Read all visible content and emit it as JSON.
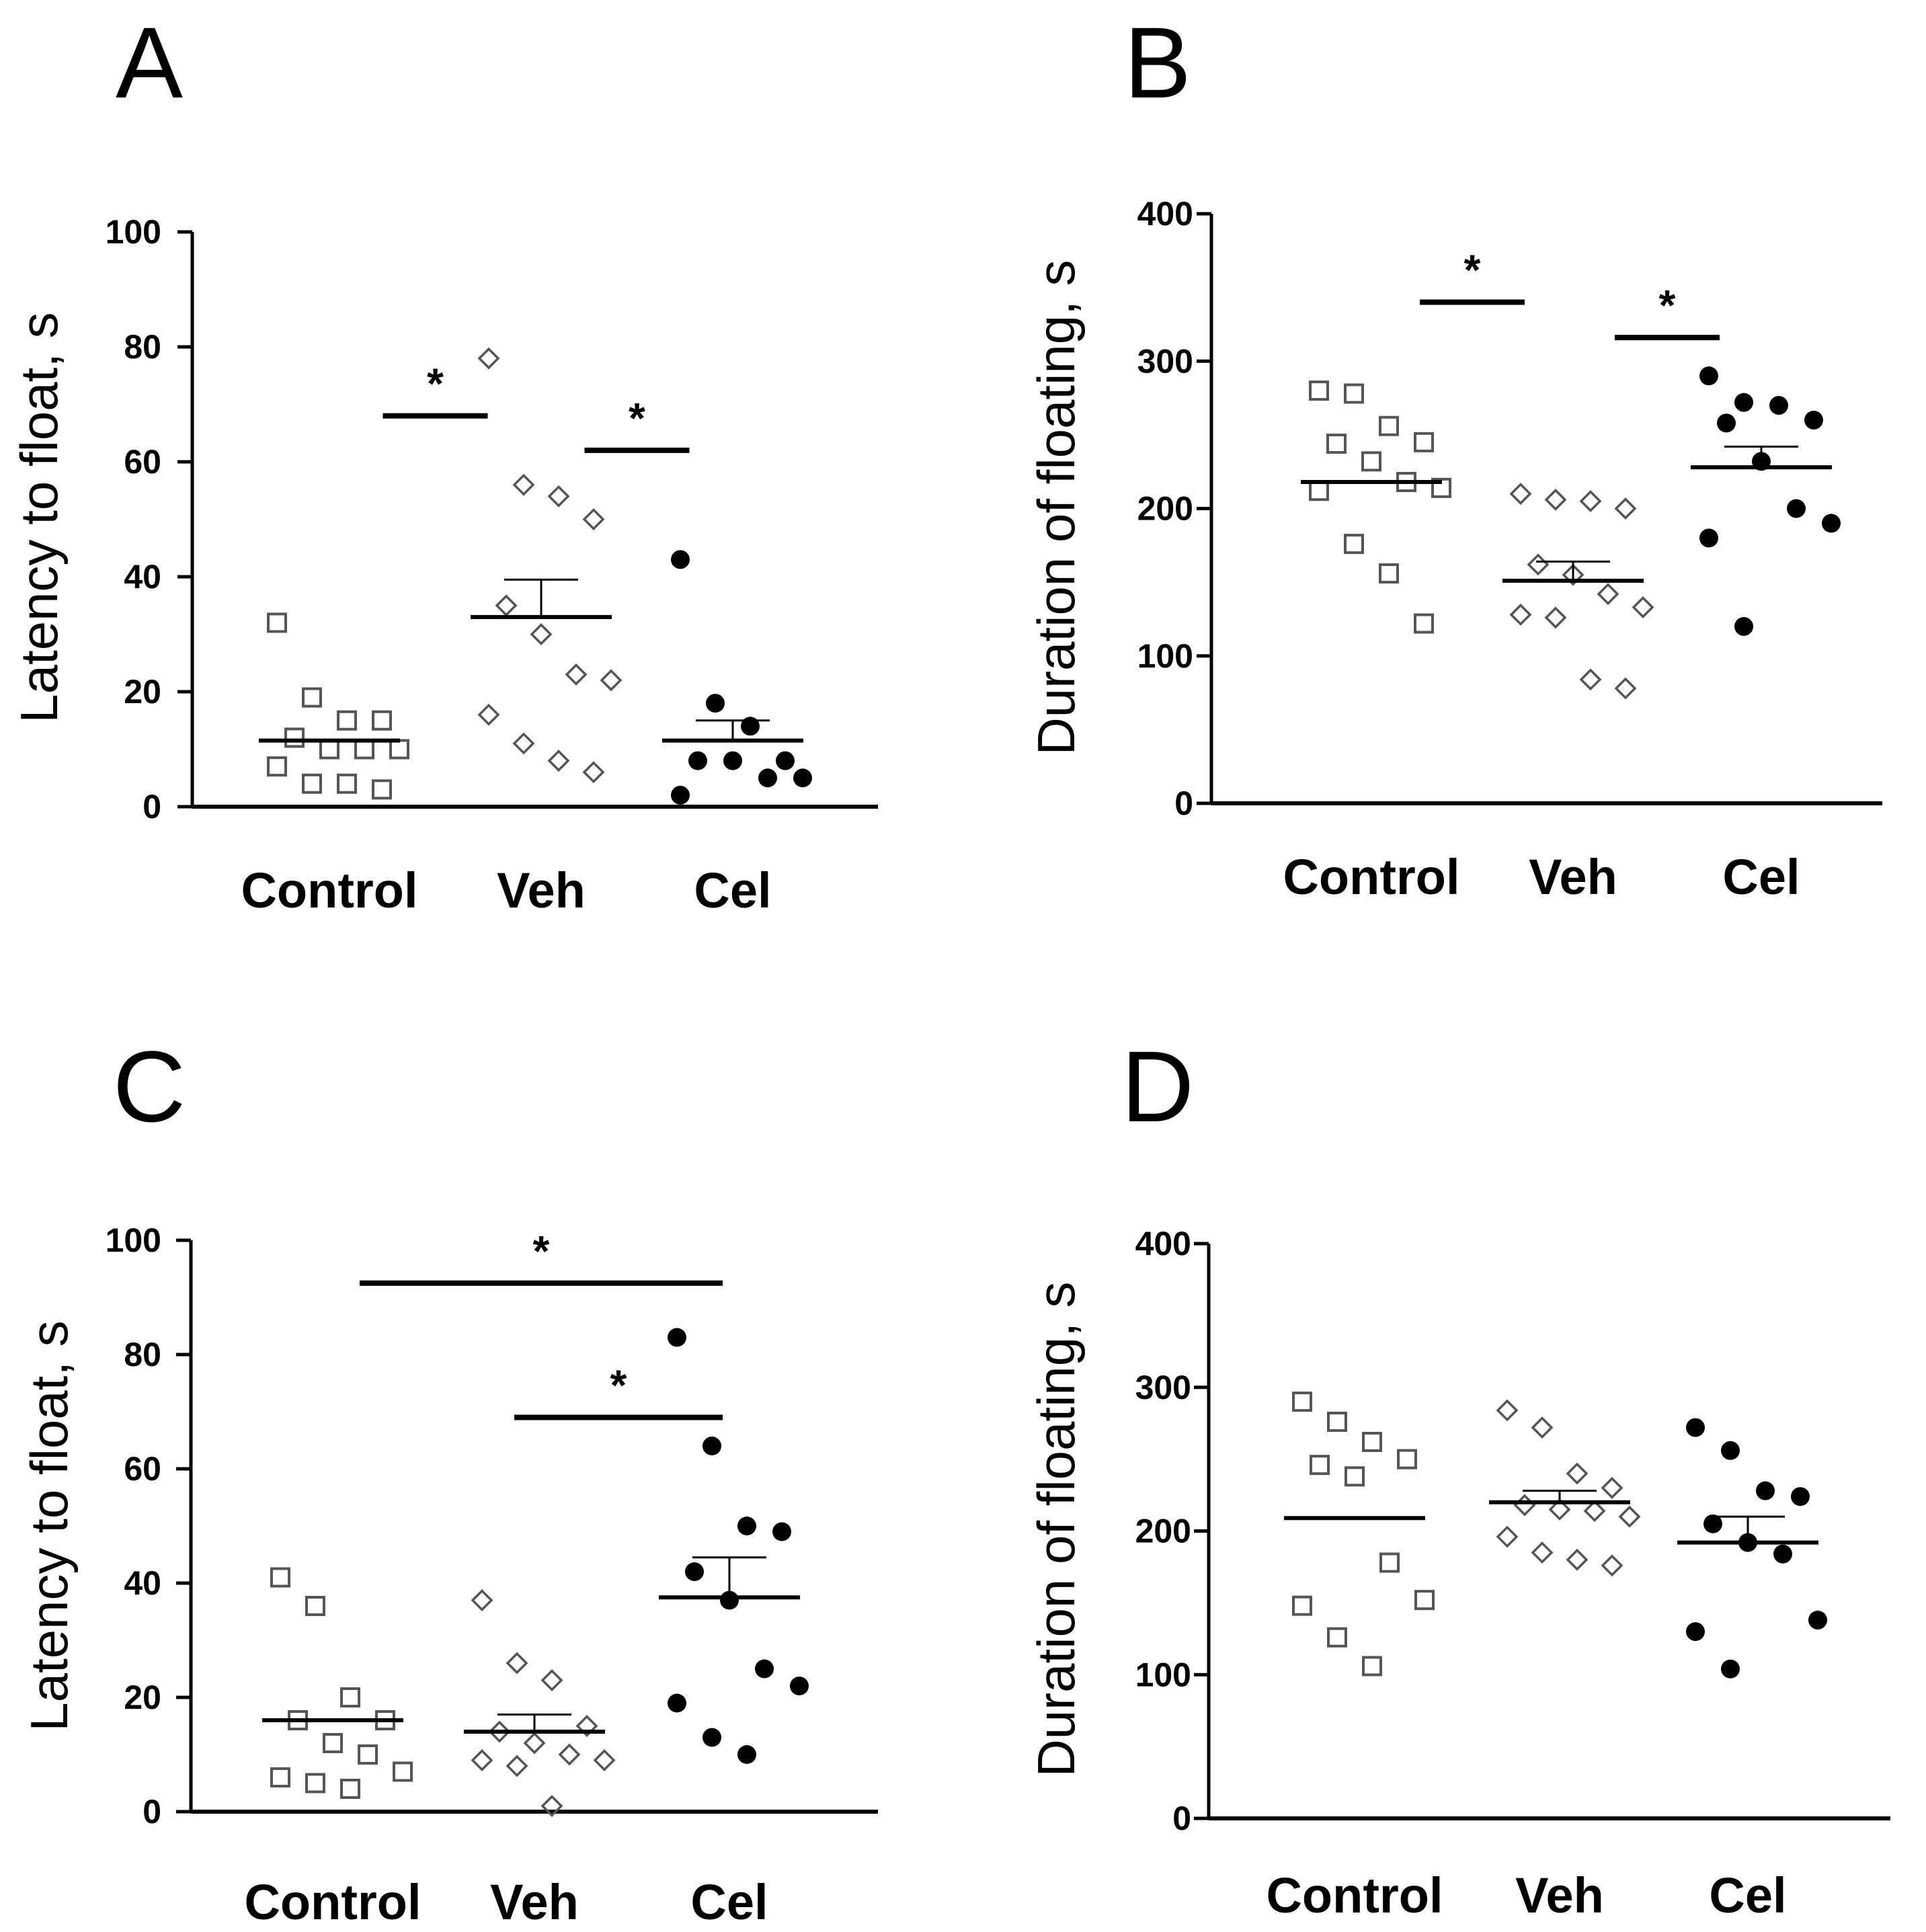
{
  "colors": {
    "ink": "#000000",
    "open_marker": "#555555",
    "background": "#ffffff"
  },
  "chart_data": [
    {
      "panel": "A",
      "type": "scatter",
      "ylabel": "Latency to float, s",
      "ylim": [
        0,
        100
      ],
      "yticks": [
        0,
        20,
        40,
        60,
        80,
        100
      ],
      "categories": [
        "Control",
        "Veh",
        "Cel"
      ],
      "series": [
        {
          "name": "Control",
          "marker": "open-square",
          "values": [
            32,
            19,
            15,
            15,
            12,
            10,
            10,
            10,
            7,
            4,
            4,
            3
          ],
          "mean": 11.5,
          "sem": 0
        },
        {
          "name": "Veh",
          "marker": "open-diamond",
          "values": [
            78,
            56,
            54,
            50,
            35,
            30,
            23,
            22,
            16,
            11,
            8,
            6
          ],
          "mean": 33,
          "sem": 6.5
        },
        {
          "name": "Cel",
          "marker": "filled-circle",
          "values": [
            43,
            18,
            14,
            8,
            8,
            8,
            5,
            5,
            2
          ],
          "mean": 11.5,
          "sem": 3.5
        }
      ],
      "significance": [
        {
          "from": 0,
          "to": 1,
          "y": 68,
          "label": "*"
        },
        {
          "from": 1,
          "to": 2,
          "y": 62,
          "label": "*"
        }
      ]
    },
    {
      "panel": "B",
      "type": "scatter",
      "ylabel": "Duration of floating, s",
      "ylim": [
        0,
        400
      ],
      "yticks": [
        0,
        100,
        200,
        300,
        400
      ],
      "categories": [
        "Control",
        "Veh",
        "Cel"
      ],
      "series": [
        {
          "name": "Control",
          "marker": "open-square",
          "values": [
            280,
            278,
            256,
            245,
            244,
            232,
            218,
            214,
            212,
            176,
            156,
            122
          ],
          "mean": 218,
          "sem": 0
        },
        {
          "name": "Veh",
          "marker": "open-diamond",
          "values": [
            210,
            206,
            205,
            200,
            162,
            155,
            142,
            133,
            128,
            126,
            84,
            78
          ],
          "mean": 151,
          "sem": 13
        },
        {
          "name": "Cel",
          "marker": "filled-circle",
          "values": [
            290,
            272,
            270,
            260,
            258,
            232,
            200,
            190,
            180,
            120
          ],
          "mean": 228,
          "sem": 14
        }
      ],
      "significance": [
        {
          "from": 0,
          "to": 1,
          "y": 340,
          "label": "*"
        },
        {
          "from": 1,
          "to": 2,
          "y": 316,
          "label": "*"
        }
      ]
    },
    {
      "panel": "C",
      "type": "scatter",
      "ylabel": "Latency to float, s",
      "ylim": [
        0,
        100
      ],
      "yticks": [
        0,
        20,
        40,
        60,
        80,
        100
      ],
      "categories": [
        "Control",
        "Veh",
        "Cel"
      ],
      "series": [
        {
          "name": "Control",
          "marker": "open-square",
          "values": [
            41,
            36,
            20,
            16,
            16,
            12,
            10,
            7,
            6,
            5,
            4
          ],
          "mean": 16,
          "sem": 0
        },
        {
          "name": "Veh",
          "marker": "open-diamond",
          "values": [
            37,
            26,
            23,
            15,
            14,
            12,
            10,
            9,
            9,
            8,
            1
          ],
          "mean": 14,
          "sem": 3
        },
        {
          "name": "Cel",
          "marker": "filled-circle",
          "values": [
            83,
            64,
            50,
            49,
            42,
            37,
            25,
            22,
            19,
            13,
            10
          ],
          "mean": 37.5,
          "sem": 7
        }
      ],
      "significance": [
        {
          "from": 0,
          "to": 2,
          "y": 92.5,
          "label": "*"
        },
        {
          "from": 1,
          "to": 2,
          "y": 69,
          "label": "*"
        }
      ]
    },
    {
      "panel": "D",
      "type": "scatter",
      "ylabel": "Duration of floating, s",
      "ylim": [
        0,
        400
      ],
      "yticks": [
        0,
        100,
        200,
        300,
        400
      ],
      "categories": [
        "Control",
        "Veh",
        "Cel"
      ],
      "series": [
        {
          "name": "Control",
          "marker": "open-square",
          "values": [
            290,
            276,
            262,
            250,
            246,
            238,
            178,
            152,
            148,
            126,
            106
          ],
          "mean": 209,
          "sem": 0
        },
        {
          "name": "Veh",
          "marker": "open-diamond",
          "values": [
            284,
            272,
            240,
            230,
            218,
            215,
            214,
            210,
            196,
            185,
            180,
            176
          ],
          "mean": 220,
          "sem": 8
        },
        {
          "name": "Cel",
          "marker": "filled-circle",
          "values": [
            272,
            256,
            228,
            224,
            205,
            192,
            184,
            138,
            130,
            104
          ],
          "mean": 192,
          "sem": 18
        }
      ],
      "significance": []
    }
  ]
}
